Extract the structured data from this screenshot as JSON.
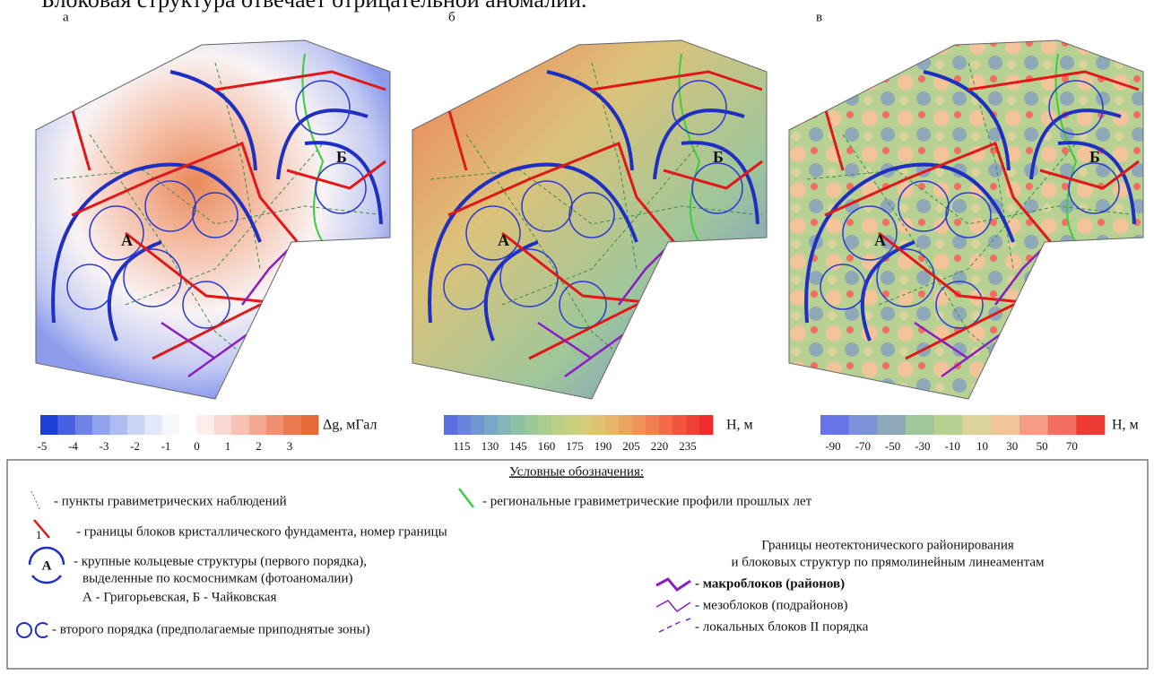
{
  "caption_fragment": "Блоковая структура отвечает отрицательной аномалии.",
  "panels": [
    {
      "letter": "а",
      "label_A": "А",
      "label_B": "Б",
      "scale": {
        "unit": "Δg, мГал",
        "ticks": [
          -5,
          -4,
          -3,
          -2,
          -1,
          0,
          1,
          2,
          3
        ],
        "colors": [
          "#1e3ed8",
          "#4662e0",
          "#6d84e6",
          "#91a2ec",
          "#afbcf1",
          "#cbd3f5",
          "#e3e7fa",
          "#f6f7fd",
          "#ffffff",
          "#fdeeeb",
          "#fad9d2",
          "#f7c2b4",
          "#f3a992",
          "#ef9170",
          "#ea7b50",
          "#e56a38"
        ]
      }
    },
    {
      "letter": "б",
      "label_A": "А",
      "label_B": "Б",
      "scale": {
        "unit": "Н, м",
        "ticks": [
          115,
          130,
          145,
          160,
          175,
          190,
          205,
          220,
          235
        ],
        "colors": [
          "#5b6fe3",
          "#6684dc",
          "#7097d2",
          "#79a8c6",
          "#83b6b7",
          "#8ec0a6",
          "#9cc897",
          "#aacd8d",
          "#bacf85",
          "#c8cf7f",
          "#d5cb79",
          "#dfc273",
          "#e6b56b",
          "#eba563",
          "#ef935a",
          "#f17f50",
          "#f26a47",
          "#f2553e",
          "#f14034",
          "#ef2b2b"
        ]
      }
    },
    {
      "letter": "в",
      "label_A": "А",
      "label_B": "Б",
      "scale": {
        "unit": "Н, м",
        "ticks": [
          -90,
          -70,
          -50,
          -30,
          -10,
          10,
          30,
          50,
          70
        ],
        "colors": [
          "#6674e8",
          "#7b93d8",
          "#8fa8b8",
          "#9fc79a",
          "#b6d191",
          "#dcd29c",
          "#f2c49a",
          "#f59d83",
          "#f26e60",
          "#ee3a32"
        ]
      }
    }
  ],
  "legend": {
    "title": "Условные обозначения:",
    "icon_1": "1",
    "icon_A": "А",
    "items": [
      "- пункты гравиметрических наблюдений",
      "- региональные гравиметрические профили прошлых лет",
      "- границы блоков кристаллического фундамента, номер границы",
      "- крупные кольцевые структуры (первого порядка),",
      "выделенные по космоснимкам (фотоаномалии)",
      "А - Григорьевская, Б - Чайковская",
      "- второго порядка (предполагаемые приподнятые зоны)"
    ],
    "neo_title": "Границы неотектонического районирования",
    "neo_subtitle": "и блоковых структур по прямолинейным линеаментам",
    "neo_items": [
      "- макроблоков (районов)",
      "- мезоблоков (подрайонов)",
      "- локальных блоков II порядка"
    ]
  }
}
